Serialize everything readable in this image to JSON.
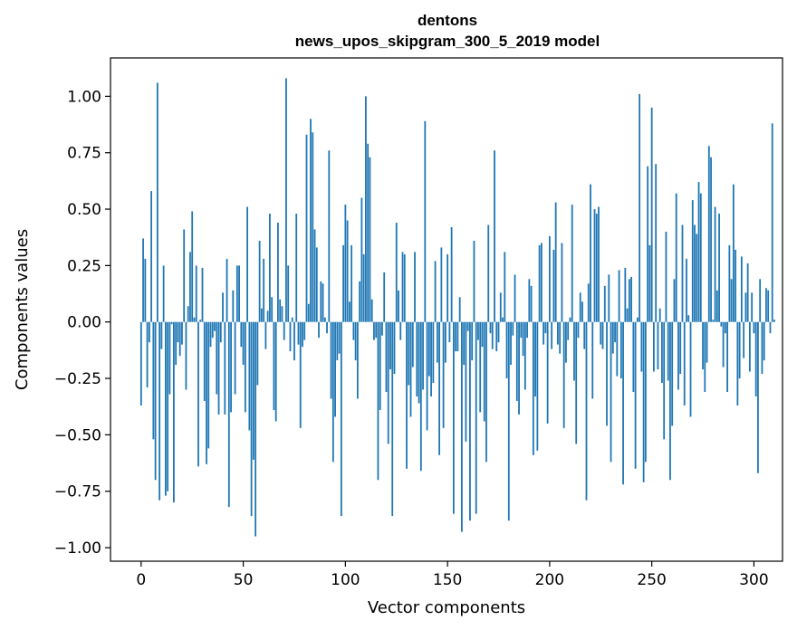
{
  "chart_data": {
    "type": "bar",
    "title": "dentons",
    "subtitle": "news_upos_skipgram_300_5_2019 model",
    "xlabel": "Vector components",
    "ylabel": "Components values",
    "xlim": [
      -15,
      314
    ],
    "ylim": [
      -1.06,
      1.17
    ],
    "xticks": [
      0,
      50,
      100,
      150,
      200,
      250,
      300
    ],
    "xtick_labels": [
      "0",
      "50",
      "100",
      "150",
      "200",
      "250",
      "300"
    ],
    "yticks": [
      1.0,
      0.75,
      0.5,
      0.25,
      0.0,
      -0.25,
      -0.5,
      -0.75,
      -1.0
    ],
    "ytick_labels": [
      "1.00",
      "0.75",
      "0.50",
      "0.25",
      "0.00",
      "−0.25",
      "−0.50",
      "−0.75",
      "−1.00"
    ],
    "bar_color": "#1f77b4",
    "grid": false,
    "values": [
      -0.37,
      0.37,
      0.28,
      -0.29,
      -0.09,
      0.58,
      -0.52,
      -0.7,
      1.06,
      -0.79,
      -0.12,
      0.25,
      -0.77,
      -0.75,
      -0.32,
      -0.01,
      -0.8,
      -0.19,
      -0.09,
      -0.15,
      -0.1,
      0.41,
      -0.3,
      0.07,
      0.31,
      0.49,
      0.02,
      0.25,
      -0.64,
      0.01,
      0.24,
      -0.35,
      -0.63,
      -0.56,
      -0.11,
      -0.07,
      -0.04,
      -0.32,
      -0.41,
      -0.09,
      0.13,
      -0.41,
      0.28,
      -0.82,
      -0.4,
      0.14,
      -0.32,
      0.25,
      0.25,
      -0.11,
      -0.19,
      -0.4,
      0.51,
      -0.48,
      -0.86,
      -0.61,
      -0.95,
      -0.28,
      0.36,
      0.06,
      0.28,
      -0.12,
      0.05,
      0.48,
      0.11,
      -0.39,
      -0.44,
      0.44,
      0.1,
      0.07,
      -0.08,
      1.08,
      0.25,
      -0.13,
      0.02,
      -0.17,
      0.48,
      -0.1,
      -0.47,
      -0.11,
      -0.08,
      0.83,
      0.08,
      0.9,
      0.84,
      0.41,
      0.33,
      -0.07,
      0.18,
      0.17,
      0.02,
      -0.05,
      0.76,
      -0.34,
      -0.62,
      -0.42,
      -0.17,
      -0.14,
      -0.86,
      0.34,
      0.52,
      0.45,
      0.09,
      0.34,
      -0.08,
      -0.17,
      -0.34,
      0.18,
      0.55,
      0.3,
      1.0,
      0.79,
      0.73,
      0.1,
      -0.08,
      -0.07,
      -0.7,
      -0.39,
      -0.06,
      0.22,
      -0.31,
      -0.54,
      -0.21,
      -0.86,
      -0.23,
      0.44,
      0.14,
      -0.08,
      0.31,
      0.3,
      -0.65,
      -0.28,
      -0.42,
      -0.2,
      0.31,
      -0.33,
      -0.36,
      -0.66,
      -0.3,
      0.89,
      -0.48,
      -0.24,
      -0.33,
      -0.27,
      0.27,
      -0.18,
      -0.59,
      0.33,
      -0.47,
      -0.18,
      0.3,
      -0.09,
      0.42,
      -0.85,
      -0.13,
      -0.13,
      0.11,
      -0.93,
      -0.19,
      -0.53,
      -0.04,
      -0.88,
      -0.17,
      0.36,
      -0.85,
      -0.08,
      -0.4,
      -0.11,
      -0.44,
      -0.62,
      0.43,
      -0.05,
      -0.12,
      0.76,
      -0.13,
      -0.09,
      0.13,
      0.02,
      0.31,
      -0.25,
      -0.88,
      -0.19,
      -0.06,
      0.21,
      -0.35,
      -0.41,
      -0.07,
      -0.15,
      -0.3,
      -0.07,
      0.19,
      0.16,
      -0.59,
      -0.33,
      -0.57,
      0.34,
      0.35,
      -0.1,
      -0.05,
      -0.45,
      0.38,
      -0.12,
      0.32,
      0.53,
      -0.1,
      -0.14,
      0.35,
      -0.47,
      -0.18,
      -0.08,
      0.02,
      0.52,
      -0.26,
      -0.54,
      -0.07,
      0.13,
      0.09,
      -0.12,
      -0.79,
      0.17,
      0.61,
      -0.34,
      0.5,
      0.48,
      0.51,
      -0.1,
      -0.12,
      0.16,
      -0.46,
      0.21,
      -0.62,
      -0.14,
      -0.09,
      -0.24,
      0.23,
      -0.25,
      -0.72,
      0.24,
      0.06,
      0.19,
      0.2,
      -0.31,
      -0.65,
      0.02,
      1.01,
      -0.22,
      -0.71,
      -0.62,
      0.69,
      0.34,
      0.95,
      -0.22,
      0.7,
      -0.21,
      0.06,
      -0.27,
      -0.52,
      0.4,
      -0.26,
      -0.7,
      -0.46,
      0.19,
      0.57,
      -0.3,
      -0.23,
      0.43,
      -0.37,
      0.28,
      0.03,
      -0.42,
      0.54,
      0.43,
      0.39,
      0.62,
      0.57,
      -0.21,
      -0.31,
      -0.18,
      0.78,
      0.73,
      0.01,
      0.51,
      0.14,
      0.48,
      -0.02,
      -0.2,
      -0.05,
      -0.31,
      0.34,
      0.19,
      0.61,
      0.32,
      -0.37,
      -0.25,
      0.29,
      -0.16,
      0.13,
      0.26,
      -0.22,
      0.13,
      -0.05,
      -0.33,
      -0.67,
      0.19,
      -0.23,
      -0.17,
      0.15,
      0.14,
      -0.05,
      0.88,
      0.01
    ]
  }
}
